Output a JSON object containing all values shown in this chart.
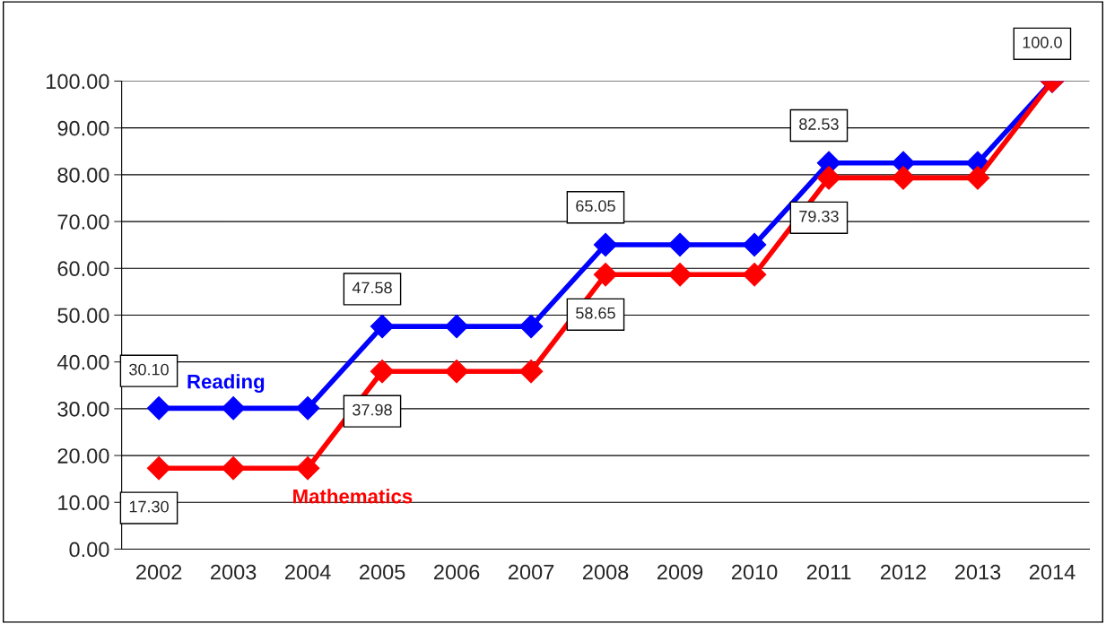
{
  "chart_data": {
    "type": "line",
    "categories": [
      "2002",
      "2003",
      "2004",
      "2005",
      "2006",
      "2007",
      "2008",
      "2009",
      "2010",
      "2011",
      "2012",
      "2013",
      "2014"
    ],
    "series": [
      {
        "name": "Reading",
        "color": "#0000ff",
        "values": [
          30.1,
          30.1,
          30.1,
          47.58,
          47.58,
          47.58,
          65.05,
          65.05,
          65.05,
          82.53,
          82.53,
          82.53,
          100.0
        ],
        "value_labels": [
          "30.10",
          null,
          null,
          "47.58",
          null,
          null,
          "65.05",
          null,
          null,
          "82.53",
          null,
          null,
          "100.0"
        ]
      },
      {
        "name": "Mathematics",
        "color": "#ff0000",
        "values": [
          17.3,
          17.3,
          17.3,
          37.98,
          37.98,
          37.98,
          58.65,
          58.65,
          58.65,
          79.33,
          79.33,
          79.33,
          100.0
        ],
        "value_labels": [
          "17.30",
          null,
          null,
          "37.98",
          null,
          null,
          "58.65",
          null,
          null,
          "79.33",
          null,
          null,
          null
        ]
      }
    ],
    "ylim": [
      0,
      100
    ],
    "yticks": [
      {
        "value": 0,
        "label": "0.00"
      },
      {
        "value": 10,
        "label": "10.00"
      },
      {
        "value": 20,
        "label": "20.00"
      },
      {
        "value": 30,
        "label": "30.00"
      },
      {
        "value": 40,
        "label": "40.00"
      },
      {
        "value": 50,
        "label": "50.00"
      },
      {
        "value": 60,
        "label": "60.00"
      },
      {
        "value": 70,
        "label": "70.00"
      },
      {
        "value": 80,
        "label": "80.00"
      },
      {
        "value": 90,
        "label": "90.00"
      },
      {
        "value": 100,
        "label": "100.00"
      }
    ],
    "grid": "y",
    "marker": "diamond",
    "line_style": "solid",
    "legend": false
  }
}
